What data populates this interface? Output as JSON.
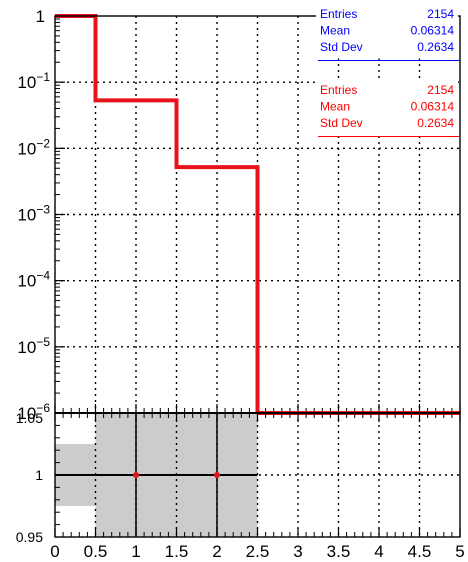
{
  "colors": {
    "background": "#ffffff",
    "axis": "#000000",
    "grid": "#000000",
    "main_hist": "#e8121b",
    "ref_hist": "#000000",
    "ratio_band": "#cccccc",
    "ratio_marker": "#e8121b",
    "stats_blue": "#0000ff",
    "stats_red": "#ff0000"
  },
  "chart_data": [
    {
      "type": "step",
      "panel": "upper",
      "yscale": "log",
      "xlim": [
        0,
        5
      ],
      "ylim": [
        1e-06,
        1
      ],
      "xticks": [
        0,
        0.5,
        1,
        1.5,
        2,
        2.5,
        3,
        3.5,
        4,
        4.5,
        5
      ],
      "ytick_labels": [
        {
          "value": 1,
          "base": "1",
          "exp": ""
        },
        {
          "value": 0.1,
          "base": "10",
          "exp": "−1"
        },
        {
          "value": 0.01,
          "base": "10",
          "exp": "−2"
        },
        {
          "value": 0.001,
          "base": "10",
          "exp": "−3"
        },
        {
          "value": 0.0001,
          "base": "10",
          "exp": "−4"
        },
        {
          "value": 1e-05,
          "base": "10",
          "exp": "−5"
        },
        {
          "value": 1e-06,
          "base": "10",
          "exp": "−6"
        }
      ],
      "grid": true,
      "bin_edges": [
        0,
        0.5,
        1.5,
        2.5,
        5
      ],
      "series": [
        {
          "values": [
            1.0,
            0.053,
            0.0052,
            1e-06
          ],
          "color": "#e8121b"
        },
        {
          "values": [
            1.0,
            0.053,
            0.0052,
            1e-06
          ],
          "color": "#000000"
        }
      ]
    },
    {
      "type": "scatter",
      "panel": "lower-ratio",
      "xlim": [
        0,
        5
      ],
      "ylim": [
        0.95,
        1.05
      ],
      "ytick_labels": [
        "1.05",
        "1",
        "0.95"
      ],
      "xtick_labels": [
        "0",
        "0.5",
        "1",
        "1.5",
        "2",
        "2.5",
        "3",
        "3.5",
        "4",
        "4.5",
        "5"
      ],
      "grid": true,
      "points": [
        {
          "x": 1,
          "y": 1,
          "xerr": 0.5
        },
        {
          "x": 2,
          "y": 1,
          "xerr": 0.5
        }
      ],
      "error_band": [
        {
          "x0": 0,
          "x1": 0.5,
          "lo": 0.975,
          "hi": 1.025
        },
        {
          "x0": 0.5,
          "x1": 2.5,
          "lo": 0.95,
          "hi": 1.05
        }
      ]
    }
  ],
  "stats_boxes": [
    {
      "color": "#0000ff",
      "rows": [
        {
          "label": "Entries",
          "value": "2154"
        },
        {
          "label": "Mean",
          "value": "0.06314"
        },
        {
          "label": "Std Dev",
          "value": "0.2634"
        }
      ]
    },
    {
      "color": "#ff0000",
      "rows": [
        {
          "label": "Entries",
          "value": "2154"
        },
        {
          "label": "Mean",
          "value": "0.06314"
        },
        {
          "label": "Std Dev",
          "value": "0.2634"
        }
      ]
    }
  ]
}
